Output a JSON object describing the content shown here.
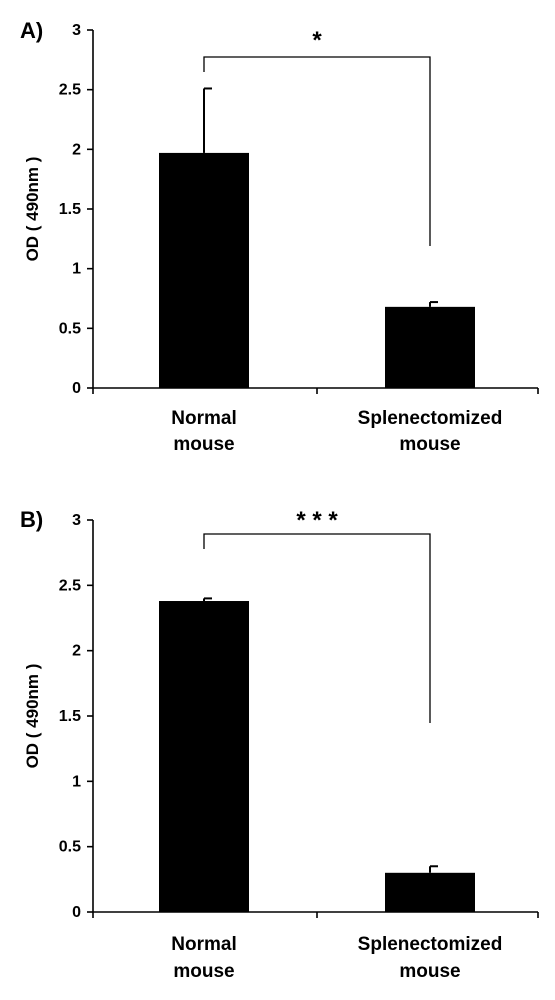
{
  "chart_data": [
    {
      "type": "bar",
      "panel_label": "A)",
      "categories": [
        [
          "Normal",
          "mouse"
        ],
        [
          "Splenectomized",
          "mouse"
        ]
      ],
      "values": [
        1.97,
        0.68
      ],
      "errors": [
        0.54,
        0.04
      ],
      "ylabel": "OD ( 490nm )",
      "ylim": [
        0,
        3
      ],
      "yticks": [
        0,
        0.5,
        1,
        1.5,
        2,
        2.5,
        3
      ],
      "ytick_labels": [
        "0",
        "0.5",
        "1",
        "1.5",
        "2",
        "2.5",
        "3"
      ],
      "significance": "*",
      "bar_color": "#000000",
      "grid": false
    },
    {
      "type": "bar",
      "panel_label": "B)",
      "categories": [
        [
          "Normal",
          "mouse"
        ],
        [
          "Splenectomized",
          "mouse"
        ]
      ],
      "values": [
        2.38,
        0.3
      ],
      "errors": [
        0.02,
        0.05
      ],
      "ylabel": "OD ( 490nm )",
      "ylim": [
        0,
        3
      ],
      "yticks": [
        0,
        0.5,
        1,
        1.5,
        2,
        2.5,
        3
      ],
      "ytick_labels": [
        "0",
        "0.5",
        "1",
        "1.5",
        "2",
        "2.5",
        "3"
      ],
      "significance": "* * *",
      "bar_color": "#000000",
      "grid": false
    }
  ]
}
